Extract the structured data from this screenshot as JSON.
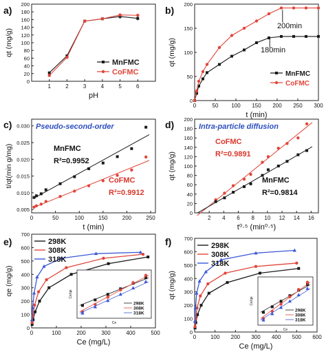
{
  "colors": {
    "black_series": "#1a1a1a",
    "red_series": "#e0463a",
    "blue_series": "#3b57d6",
    "annotation_blue": "#2e4fbf",
    "annotation_red": "#d9372b"
  },
  "chart_data": [
    {
      "panel_label": "a)",
      "type": "line",
      "xlabel": "pH",
      "ylabel": "q_t (mg/g)",
      "xlim": [
        0,
        7
      ],
      "ylim": [
        0,
        200
      ],
      "xticks": [
        1,
        2,
        3,
        4,
        5,
        6
      ],
      "yticks": [
        0,
        20,
        40,
        60,
        80,
        100,
        120,
        140,
        160,
        180,
        200
      ],
      "legend": {
        "position": "bottom-right",
        "entries": [
          "MnFMC",
          "CoFMC"
        ]
      },
      "series": [
        {
          "name": "MnFMC",
          "color": "#1a1a1a",
          "marker": "square",
          "x": [
            1,
            2,
            3,
            4,
            5,
            6
          ],
          "y": [
            22,
            66,
            156,
            162,
            168,
            163
          ],
          "err": [
            0,
            0,
            0,
            3,
            6,
            5
          ]
        },
        {
          "name": "CoFMC",
          "color": "#e0463a",
          "marker": "circle",
          "x": [
            1,
            2,
            3,
            4,
            5,
            6
          ],
          "y": [
            15,
            62,
            156,
            162,
            172,
            171
          ],
          "err": [
            0,
            0,
            0,
            2,
            4,
            4
          ]
        }
      ]
    },
    {
      "panel_label": "b)",
      "type": "line",
      "xlabel": "t (min)",
      "ylabel": "q_t (mg/g)",
      "xlim": [
        0,
        300
      ],
      "ylim": [
        0,
        200
      ],
      "xticks": [
        0,
        50,
        100,
        150,
        200,
        250,
        300
      ],
      "yticks": [
        0,
        50,
        100,
        150,
        200
      ],
      "legend": {
        "position": "bottom-right",
        "entries": [
          "MnFMC",
          "CoFMC"
        ]
      },
      "annotations": [
        "200min",
        "180min"
      ],
      "series": [
        {
          "name": "MnFMC",
          "color": "#1a1a1a",
          "marker": "square",
          "x": [
            0,
            5,
            10,
            20,
            30,
            60,
            90,
            120,
            150,
            180,
            210,
            240,
            270,
            300
          ],
          "y": [
            0,
            15,
            30,
            45,
            58,
            75,
            92,
            105,
            120,
            130,
            133,
            133,
            133,
            133
          ]
        },
        {
          "name": "CoFMC",
          "color": "#e0463a",
          "marker": "circle",
          "x": [
            0,
            5,
            10,
            20,
            30,
            60,
            90,
            120,
            150,
            180,
            210,
            240,
            270,
            300
          ],
          "y": [
            0,
            20,
            40,
            60,
            75,
            110,
            135,
            150,
            165,
            180,
            192,
            192,
            192,
            192
          ]
        }
      ]
    },
    {
      "panel_label": "c)",
      "type": "scatter",
      "title": "Pseudo-second-order",
      "xlabel": "t (min)",
      "ylabel": "t/q_t(min g/mg)",
      "xlim": [
        0,
        260
      ],
      "ylim": [
        0.004,
        0.032
      ],
      "xticks": [
        0,
        50,
        100,
        150,
        200,
        250
      ],
      "yticks": [
        0.005,
        0.01,
        0.015,
        0.02,
        0.025,
        0.03
      ],
      "series": [
        {
          "name": "MnFMC",
          "color": "#1a1a1a",
          "marker": "square",
          "fit": "R²=0.9952",
          "x": [
            5,
            10,
            20,
            30,
            60,
            90,
            120,
            150,
            180,
            210,
            240
          ],
          "y": [
            0.0086,
            0.0091,
            0.0097,
            0.0109,
            0.0127,
            0.0148,
            0.0172,
            0.0189,
            0.0208,
            0.0232,
            0.0296
          ]
        },
        {
          "name": "CoFMC",
          "color": "#e0463a",
          "marker": "circle",
          "fit": "R²=0.9912",
          "x": [
            5,
            10,
            20,
            30,
            60,
            90,
            120,
            150,
            180,
            210,
            240
          ],
          "y": [
            0.0057,
            0.0061,
            0.0066,
            0.0074,
            0.0089,
            0.0105,
            0.0121,
            0.0136,
            0.0152,
            0.0168,
            0.0207
          ]
        }
      ]
    },
    {
      "panel_label": "d)",
      "type": "scatter",
      "title": "Intra-particle diffusion",
      "xlabel": "t^0.5 (min^0.5)",
      "ylabel": "q_t (mg/g)",
      "xlim": [
        0,
        17
      ],
      "ylim": [
        0,
        200
      ],
      "xticks": [
        2,
        4,
        6,
        8,
        10,
        12,
        14,
        16
      ],
      "yticks": [
        0,
        20,
        40,
        60,
        80,
        100,
        120,
        140,
        160,
        180,
        200
      ],
      "series": [
        {
          "name": "CoFMC",
          "color": "#e0463a",
          "marker": "circle",
          "fit": "R²=0.9891",
          "x": [
            2.9,
            4.1,
            5.3,
            6.8,
            7.7,
            9.3,
            10.1,
            11.5,
            12.7,
            14.2,
            15.4
          ],
          "y": [
            28,
            42,
            58,
            72,
            82,
            108,
            120,
            138,
            148,
            160,
            190
          ]
        },
        {
          "name": "MnFMC",
          "color": "#1a1a1a",
          "marker": "square",
          "x": [
            2.9,
            4.1,
            5.3,
            6.8,
            7.7,
            9.3,
            10.1,
            11.5,
            12.7,
            14.2,
            15.4
          ],
          "y": [
            24,
            32,
            44,
            56,
            62,
            80,
            92,
            100,
            110,
            124,
            133
          ],
          "fit": "R²=0.9814"
        }
      ]
    },
    {
      "panel_label": "e)",
      "type": "line",
      "xlabel": "C_e (mg/L)",
      "ylabel": "q_e (mg/g)",
      "xlim": [
        0,
        500
      ],
      "ylim": [
        0,
        700
      ],
      "xticks": [
        0,
        100,
        200,
        300,
        400,
        500
      ],
      "yticks": [
        0,
        100,
        200,
        300,
        400,
        500,
        600,
        700
      ],
      "legend": {
        "position": "top-left",
        "entries": [
          "298K",
          "308K",
          "318K"
        ]
      },
      "series": [
        {
          "name": "298K",
          "color": "#1a1a1a",
          "marker": "square",
          "x": [
            2,
            6,
            14,
            32,
            70,
            160,
            310,
            470
          ],
          "y": [
            25,
            60,
            120,
            200,
            300,
            400,
            480,
            530
          ]
        },
        {
          "name": "308K",
          "color": "#e0463a",
          "marker": "circle",
          "x": [
            2,
            5,
            12,
            28,
            60,
            140,
            290,
            450
          ],
          "y": [
            40,
            90,
            170,
            270,
            360,
            450,
            520,
            550
          ]
        },
        {
          "name": "318K",
          "color": "#3b57d6",
          "marker": "triangle",
          "x": [
            1,
            4,
            10,
            22,
            50,
            120,
            260,
            440
          ],
          "y": [
            60,
            150,
            260,
            380,
            460,
            520,
            555,
            565
          ]
        }
      ],
      "inset": {
        "xlabel": "C_e",
        "ylabel": "C_e/q_e",
        "legend": [
          "298K",
          "308K",
          "318K"
        ]
      }
    },
    {
      "panel_label": "f)",
      "type": "line",
      "xlabel": "Ce (mg/L)",
      "ylabel": "q_t (mg/g)",
      "xlim": [
        0,
        600
      ],
      "ylim": [
        0,
        700
      ],
      "xticks": [
        0,
        100,
        200,
        300,
        400,
        500,
        600
      ],
      "yticks": [
        0,
        100,
        200,
        300,
        400,
        500,
        600,
        700
      ],
      "legend": {
        "position": "top-left",
        "entries": [
          "298K",
          "308K",
          "318K"
        ]
      },
      "series": [
        {
          "name": "298K",
          "color": "#1a1a1a",
          "marker": "square",
          "x": [
            2,
            6,
            14,
            32,
            70,
            160,
            320,
            510
          ],
          "y": [
            30,
            70,
            130,
            200,
            290,
            370,
            440,
            475
          ]
        },
        {
          "name": "308K",
          "color": "#e0463a",
          "marker": "circle",
          "x": [
            2,
            5,
            12,
            28,
            65,
            150,
            300,
            500
          ],
          "y": [
            40,
            100,
            180,
            270,
            360,
            440,
            490,
            515
          ]
        },
        {
          "name": "318K",
          "color": "#3b57d6",
          "marker": "triangle",
          "x": [
            1,
            4,
            10,
            24,
            55,
            130,
            300,
            490
          ],
          "y": [
            80,
            180,
            290,
            380,
            450,
            540,
            590,
            610
          ]
        }
      ],
      "inset": {
        "xlabel": "C_e",
        "ylabel": "C_e/q_e",
        "legend": [
          "298K",
          "308K",
          "318K"
        ]
      }
    }
  ]
}
